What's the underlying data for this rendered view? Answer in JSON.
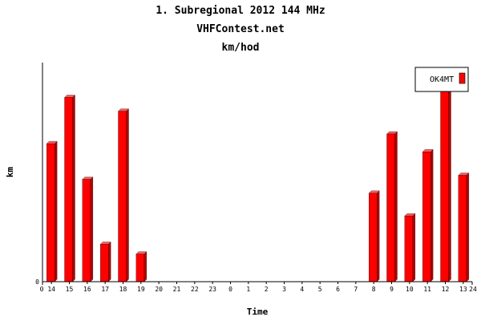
{
  "chart_data": {
    "type": "bar",
    "title_lines": [
      "1. Subregional 2012 144 MHz",
      "VHFContest.net",
      "km/hod"
    ],
    "xlabel": "Time",
    "ylabel": "km",
    "categories": [
      "14",
      "15",
      "16",
      "17",
      "18",
      "19",
      "20",
      "21",
      "22",
      "23",
      "0",
      "1",
      "2",
      "3",
      "4",
      "5",
      "6",
      "7",
      "8",
      "9",
      "10",
      "11",
      "12",
      "13"
    ],
    "series": [
      {
        "name": "OK4MT",
        "color": "#ff0000",
        "values": [
          170,
          227,
          126,
          46,
          210,
          34,
          0,
          0,
          0,
          0,
          0,
          0,
          0,
          0,
          0,
          0,
          0,
          0,
          109,
          182,
          81,
          160,
          240,
          131
        ]
      }
    ],
    "x_axis_start_label": "0",
    "x_axis_end_label": "24",
    "y_axis_zero_label": "0",
    "ylim": [
      0,
      270
    ],
    "grid": false,
    "legend": "top-right"
  }
}
